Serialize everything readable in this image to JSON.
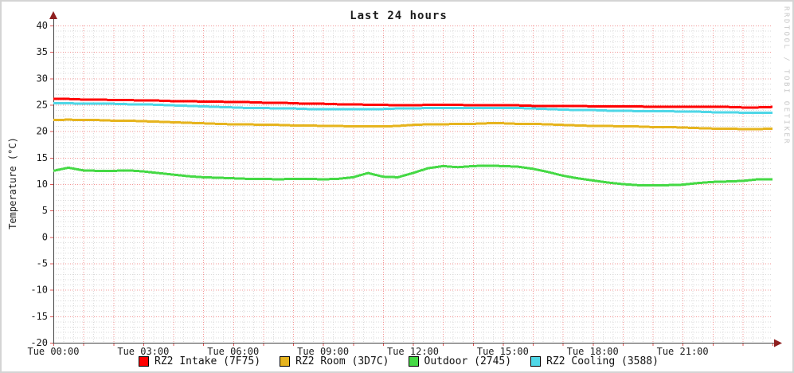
{
  "title": "Last 24 hours",
  "watermark": "RRDTOOL / TOBI OETIKER",
  "y_axis_label": "Temperature (°C)",
  "colors": {
    "background": "#ffffff",
    "frame_border": "#d4d4d4",
    "axis": "#444444",
    "arrow": "#8f1f1f",
    "tick": "#e05555",
    "grid_minor": "#d9d9d9",
    "grid_major": "#f29494",
    "text": "#1c1c1c",
    "watermark_text": "#c9c9c9"
  },
  "chart_data": {
    "type": "line",
    "title": "Last 24 hours",
    "xlabel": "",
    "ylabel": "Temperature (°C)",
    "xlim": [
      0,
      24
    ],
    "ylim": [
      -20,
      40
    ],
    "grid": {
      "minor_x_minutes": 20,
      "major_x_minutes": 60,
      "minor_y_step": 1,
      "major_y_step": 5
    },
    "legend_position": "bottom",
    "x_start_hour": 0,
    "x_step_hours": 0.5,
    "x_ticks": [
      {
        "h": 0,
        "label": "Tue 00:00"
      },
      {
        "h": 3,
        "label": "Tue 03:00"
      },
      {
        "h": 6,
        "label": "Tue 06:00"
      },
      {
        "h": 9,
        "label": "Tue 09:00"
      },
      {
        "h": 12,
        "label": "Tue 12:00"
      },
      {
        "h": 15,
        "label": "Tue 15:00"
      },
      {
        "h": 18,
        "label": "Tue 18:00"
      },
      {
        "h": 21,
        "label": "Tue 21:00"
      }
    ],
    "y_ticks": [
      {
        "v": 40,
        "label": "40"
      },
      {
        "v": 35,
        "label": "35"
      },
      {
        "v": 30,
        "label": "30"
      },
      {
        "v": 25,
        "label": "25"
      },
      {
        "v": 20,
        "label": "20"
      },
      {
        "v": 15,
        "label": "15"
      },
      {
        "v": 10,
        "label": "10"
      },
      {
        "v": 5,
        "label": "5"
      },
      {
        "v": 0,
        "label": "0"
      },
      {
        "v": -5,
        "label": "-5"
      },
      {
        "v": -10,
        "label": "-10"
      },
      {
        "v": -15,
        "label": "-15"
      },
      {
        "v": -20,
        "label": "-20"
      }
    ],
    "series": [
      {
        "name": "RZ2 Intake (7F75)",
        "color": "#ff0000",
        "values": [
          26.1,
          26.1,
          26.0,
          26.0,
          25.9,
          25.9,
          25.8,
          25.8,
          25.7,
          25.7,
          25.6,
          25.6,
          25.5,
          25.5,
          25.4,
          25.4,
          25.3,
          25.2,
          25.2,
          25.1,
          25.1,
          25.0,
          25.0,
          24.9,
          24.9,
          25.0,
          25.0,
          25.0,
          24.9,
          24.9,
          24.9,
          24.9,
          24.8,
          24.8,
          24.8,
          24.8,
          24.7,
          24.7,
          24.7,
          24.7,
          24.6,
          24.6,
          24.6,
          24.6,
          24.6,
          24.6,
          24.5,
          24.5,
          24.6
        ]
      },
      {
        "name": "RZ2 Room (3D7C)",
        "color": "#e6b41e",
        "values": [
          22.1,
          22.2,
          22.1,
          22.1,
          22.0,
          22.0,
          21.9,
          21.8,
          21.7,
          21.6,
          21.5,
          21.4,
          21.3,
          21.3,
          21.2,
          21.2,
          21.1,
          21.1,
          21.0,
          21.0,
          20.9,
          20.9,
          20.9,
          21.0,
          21.2,
          21.3,
          21.3,
          21.4,
          21.4,
          21.5,
          21.5,
          21.4,
          21.4,
          21.3,
          21.2,
          21.1,
          21.0,
          21.0,
          20.9,
          20.9,
          20.8,
          20.8,
          20.7,
          20.6,
          20.5,
          20.5,
          20.4,
          20.4,
          20.5
        ]
      },
      {
        "name": "Outdoor (2745)",
        "color": "#45d945",
        "values": [
          12.5,
          13.1,
          12.6,
          12.5,
          12.5,
          12.6,
          12.4,
          12.1,
          11.8,
          11.5,
          11.3,
          11.2,
          11.1,
          11.0,
          11.0,
          10.9,
          11.0,
          11.0,
          10.9,
          11.0,
          11.3,
          12.1,
          11.4,
          11.3,
          12.1,
          13.0,
          13.4,
          13.2,
          13.4,
          13.5,
          13.4,
          13.3,
          12.9,
          12.3,
          11.6,
          11.1,
          10.7,
          10.3,
          10.0,
          9.8,
          9.8,
          9.8,
          9.9,
          10.2,
          10.4,
          10.5,
          10.6,
          10.9,
          10.9
        ]
      },
      {
        "name": "RZ2 Cooling (3588)",
        "color": "#4fd7e7",
        "values": [
          25.3,
          25.3,
          25.2,
          25.2,
          25.2,
          25.1,
          25.1,
          25.0,
          24.9,
          24.8,
          24.7,
          24.6,
          24.5,
          24.4,
          24.4,
          24.3,
          24.3,
          24.2,
          24.2,
          24.2,
          24.2,
          24.2,
          24.2,
          24.3,
          24.3,
          24.4,
          24.4,
          24.4,
          24.4,
          24.4,
          24.4,
          24.4,
          24.3,
          24.2,
          24.1,
          24.0,
          24.0,
          23.9,
          23.9,
          23.8,
          23.8,
          23.8,
          23.7,
          23.7,
          23.6,
          23.6,
          23.5,
          23.5,
          23.5
        ]
      }
    ]
  }
}
